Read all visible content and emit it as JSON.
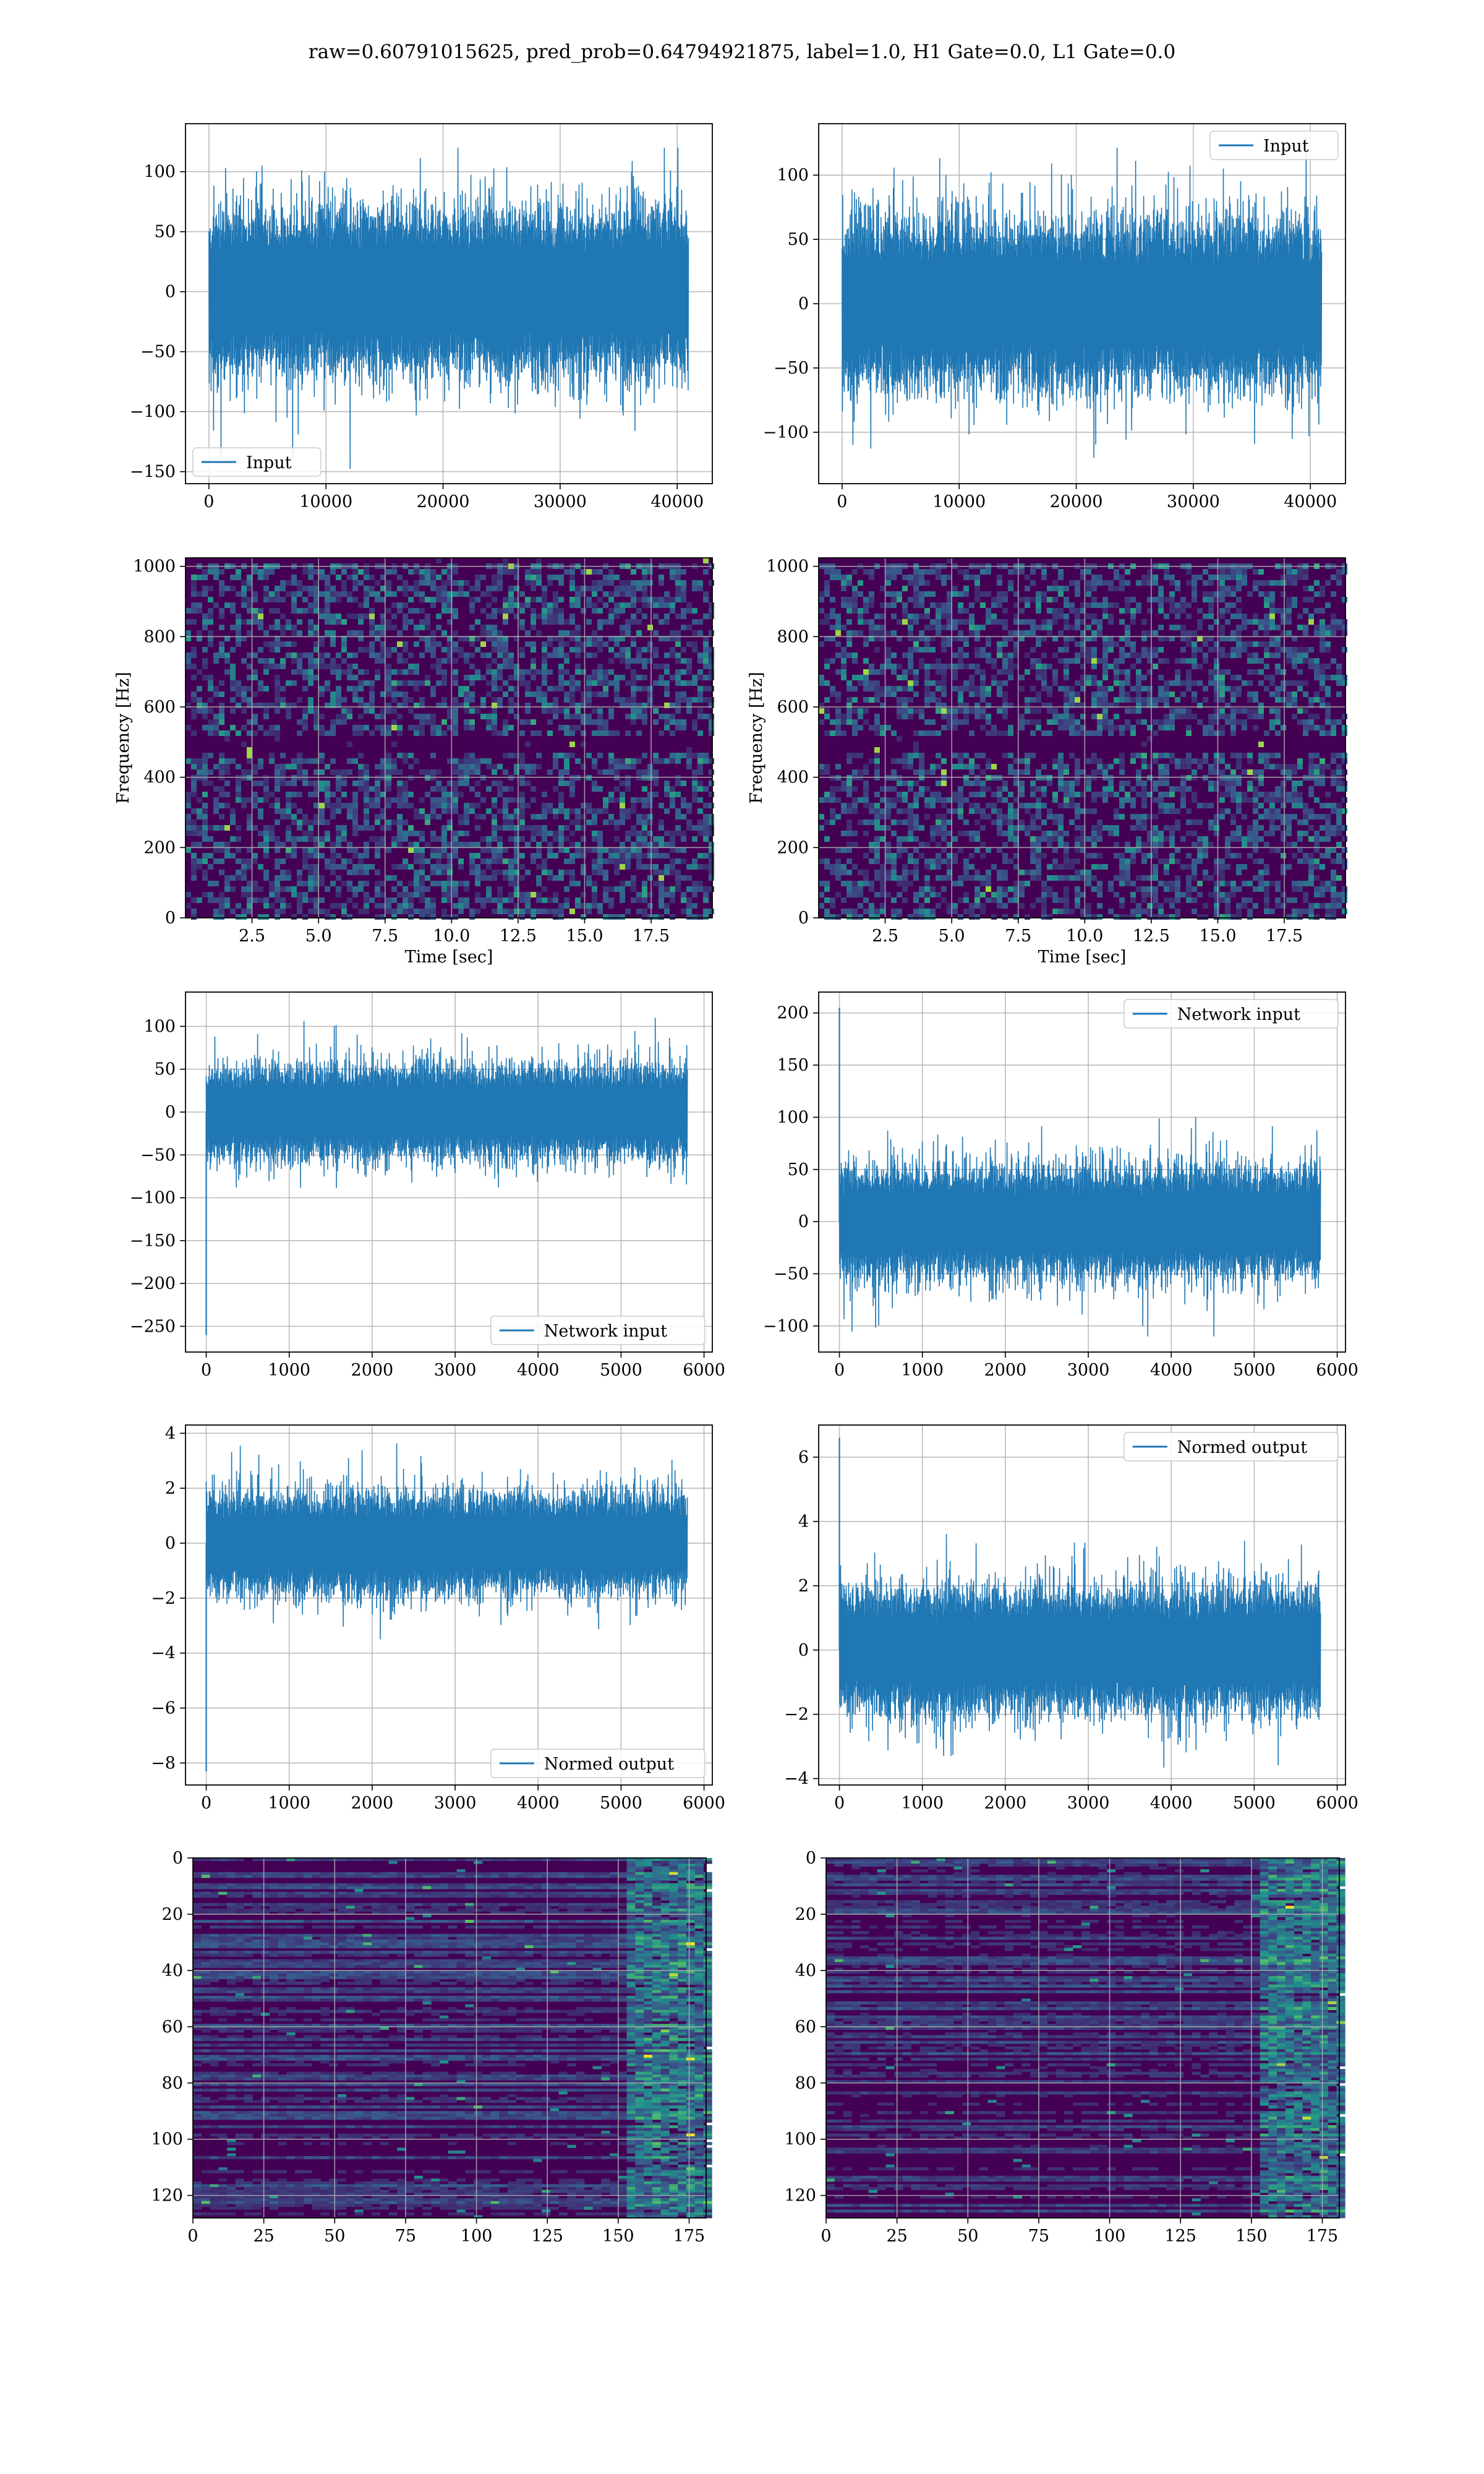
{
  "title": "raw=0.60791015625, pred_prob=0.64794921875, label=1.0, H1 Gate=0.0, L1 Gate=0.0",
  "colors": {
    "line": "#1f77b4",
    "grid": "#b0b0b0",
    "viridis_dark": "#440154",
    "viridis_teal": "#21918c",
    "viridis_green": "#5ec962",
    "viridis_yellow": "#fde725"
  },
  "chart_data": [
    {
      "id": "h1_input",
      "type": "line",
      "series": [
        {
          "name": "Input",
          "n": 40960,
          "y_range": [
            -150,
            120
          ]
        }
      ],
      "legend": "lower-left",
      "xlim": [
        -2000,
        43000
      ],
      "ylim": [
        -160,
        140
      ],
      "xticks": [
        0,
        10000,
        20000,
        30000,
        40000
      ],
      "yticks": [
        100,
        50,
        0,
        -50,
        -100,
        -150
      ],
      "xticklabels": [
        "0",
        "10000",
        "20000",
        "30000",
        "40000"
      ],
      "yticklabels": [
        "100",
        "50",
        "0",
        "−50",
        "−100",
        "−150"
      ],
      "xlabel": "",
      "ylabel": "",
      "grid": true
    },
    {
      "id": "l1_input",
      "type": "line",
      "series": [
        {
          "name": "Input",
          "n": 40960,
          "y_range": [
            -120,
            130
          ]
        }
      ],
      "legend": "top-right",
      "xlim": [
        -2000,
        43000
      ],
      "ylim": [
        -140,
        140
      ],
      "xticks": [
        0,
        10000,
        20000,
        30000,
        40000
      ],
      "yticks": [
        100,
        50,
        0,
        -50,
        -100
      ],
      "xticklabels": [
        "0",
        "10000",
        "20000",
        "30000",
        "40000"
      ],
      "yticklabels": [
        "100",
        "50",
        "0",
        "−50",
        "−100"
      ],
      "xlabel": "",
      "ylabel": "",
      "grid": true
    },
    {
      "id": "h1_spectrogram",
      "type": "heatmap",
      "xlim": [
        0,
        19.8
      ],
      "ylim": [
        0,
        1024
      ],
      "xticks": [
        2.5,
        5.0,
        7.5,
        10.0,
        12.5,
        15.0,
        17.5
      ],
      "yticks": [
        0,
        200,
        400,
        600,
        800,
        1000
      ],
      "xticklabels": [
        "2.5",
        "5.0",
        "7.5",
        "10.0",
        "12.5",
        "15.0",
        "17.5"
      ],
      "yticklabels": [
        "0",
        "200",
        "400",
        "600",
        "800",
        "1000"
      ],
      "xlabel": "Time [sec]",
      "ylabel": "Frequency [Hz]",
      "grid": true
    },
    {
      "id": "l1_spectrogram",
      "type": "heatmap",
      "xlim": [
        0,
        19.8
      ],
      "ylim": [
        0,
        1024
      ],
      "xticks": [
        2.5,
        5.0,
        7.5,
        10.0,
        12.5,
        15.0,
        17.5
      ],
      "yticks": [
        0,
        200,
        400,
        600,
        800,
        1000
      ],
      "xticklabels": [
        "2.5",
        "5.0",
        "7.5",
        "10.0",
        "12.5",
        "15.0",
        "17.5"
      ],
      "yticklabels": [
        "0",
        "200",
        "400",
        "600",
        "800",
        "1000"
      ],
      "xlabel": "Time [sec]",
      "ylabel": "Frequency [Hz]",
      "grid": true
    },
    {
      "id": "h1_network_input",
      "type": "line",
      "series": [
        {
          "name": "Network input",
          "n": 5800,
          "y_range": [
            -100,
            110
          ],
          "spike": -260
        }
      ],
      "legend": "lower-right",
      "xlim": [
        -250,
        6100
      ],
      "ylim": [
        -280,
        140
      ],
      "xticks": [
        0,
        1000,
        2000,
        3000,
        4000,
        5000,
        6000
      ],
      "yticks": [
        100,
        50,
        0,
        -50,
        -100,
        -150,
        -200,
        -250
      ],
      "xticklabels": [
        "0",
        "1000",
        "2000",
        "3000",
        "4000",
        "5000",
        "6000"
      ],
      "yticklabels": [
        "100",
        "50",
        "0",
        "−50",
        "−100",
        "−150",
        "−200",
        "−250"
      ],
      "xlabel": "",
      "ylabel": "",
      "grid": true
    },
    {
      "id": "l1_network_input",
      "type": "line",
      "series": [
        {
          "name": "Network input",
          "n": 5800,
          "y_range": [
            -110,
            100
          ],
          "spike": 205
        }
      ],
      "legend": "top-right",
      "xlim": [
        -250,
        6100
      ],
      "ylim": [
        -125,
        220
      ],
      "xticks": [
        0,
        1000,
        2000,
        3000,
        4000,
        5000,
        6000
      ],
      "yticks": [
        200,
        150,
        100,
        50,
        0,
        -50,
        -100
      ],
      "xticklabels": [
        "0",
        "1000",
        "2000",
        "3000",
        "4000",
        "5000",
        "6000"
      ],
      "yticklabels": [
        "200",
        "150",
        "100",
        "50",
        "0",
        "−50",
        "−100"
      ],
      "xlabel": "",
      "ylabel": "",
      "grid": true
    },
    {
      "id": "h1_normed_output",
      "type": "line",
      "series": [
        {
          "name": "Normed output",
          "n": 5800,
          "y_range": [
            -3.5,
            3.7
          ],
          "spike": -8.3
        }
      ],
      "legend": "lower-right",
      "xlim": [
        -250,
        6100
      ],
      "ylim": [
        -8.8,
        4.3
      ],
      "xticks": [
        0,
        1000,
        2000,
        3000,
        4000,
        5000,
        6000
      ],
      "yticks": [
        4,
        2,
        0,
        -2,
        -4,
        -6,
        -8
      ],
      "xticklabels": [
        "0",
        "1000",
        "2000",
        "3000",
        "4000",
        "5000",
        "6000"
      ],
      "yticklabels": [
        "4",
        "2",
        "0",
        "−2",
        "−4",
        "−6",
        "−8"
      ],
      "xlabel": "",
      "ylabel": "",
      "grid": true
    },
    {
      "id": "l1_normed_output",
      "type": "line",
      "series": [
        {
          "name": "Normed output",
          "n": 5800,
          "y_range": [
            -3.7,
            3.9
          ],
          "spike": 6.6
        }
      ],
      "legend": "top-right",
      "xlim": [
        -250,
        6100
      ],
      "ylim": [
        -4.2,
        7.0
      ],
      "xticks": [
        0,
        1000,
        2000,
        3000,
        4000,
        5000,
        6000
      ],
      "yticks": [
        6,
        4,
        2,
        0,
        -2,
        -4
      ],
      "xticklabels": [
        "0",
        "1000",
        "2000",
        "3000",
        "4000",
        "5000",
        "6000"
      ],
      "yticklabels": [
        "6",
        "4",
        "2",
        "0",
        "−2",
        "−4"
      ],
      "xlabel": "",
      "ylabel": "",
      "grid": true
    },
    {
      "id": "h1_feature_map",
      "type": "heatmap",
      "rows": 128,
      "cols": 181,
      "xlim": [
        0,
        181
      ],
      "ylim": [
        128,
        0
      ],
      "xticks": [
        0,
        25,
        50,
        75,
        100,
        125,
        150,
        175
      ],
      "yticks": [
        0,
        20,
        40,
        60,
        80,
        100,
        120
      ],
      "xticklabels": [
        "0",
        "25",
        "50",
        "75",
        "100",
        "125",
        "150",
        "175"
      ],
      "yticklabels": [
        "0",
        "20",
        "40",
        "60",
        "80",
        "100",
        "120"
      ],
      "xlabel": "",
      "ylabel": "",
      "grid": true
    },
    {
      "id": "l1_feature_map",
      "type": "heatmap",
      "rows": 128,
      "cols": 181,
      "xlim": [
        0,
        181
      ],
      "ylim": [
        128,
        0
      ],
      "xticks": [
        0,
        25,
        50,
        75,
        100,
        125,
        150,
        175
      ],
      "yticks": [
        0,
        20,
        40,
        60,
        80,
        100,
        120
      ],
      "xticklabels": [
        "0",
        "25",
        "50",
        "75",
        "100",
        "125",
        "150",
        "175"
      ],
      "yticklabels": [
        "0",
        "20",
        "40",
        "60",
        "80",
        "100",
        "120"
      ],
      "xlabel": "",
      "ylabel": "",
      "grid": true
    }
  ]
}
